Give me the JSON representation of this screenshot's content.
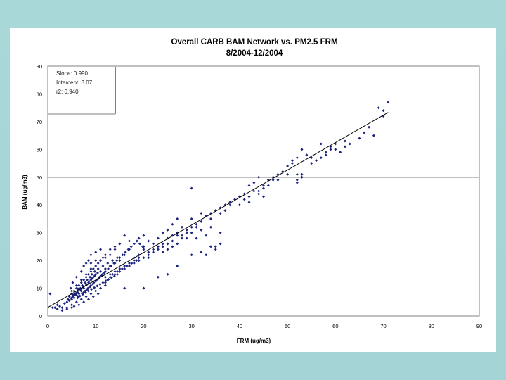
{
  "chart_data": {
    "type": "scatter",
    "title": "Overall CARB BAM Network vs. PM2.5 FRM",
    "subtitle": "8/2004-12/2004",
    "xlabel": "FRM (ug/m3)",
    "ylabel": "BAM (ug/m3)",
    "xlim": [
      0,
      90
    ],
    "ylim": [
      0,
      90
    ],
    "x_ticks": [
      "0",
      "10",
      "20",
      "30",
      "40",
      "50",
      "60",
      "70",
      "80",
      "90"
    ],
    "y_ticks": [
      "0",
      "10",
      "20",
      "30",
      "40",
      "50",
      "60",
      "70",
      "80",
      "90"
    ],
    "grid": false,
    "marker_color": "#1a237e",
    "stats": {
      "slope": "Slope: 0.990",
      "intercept": "Intercept: 3.07",
      "r2": "r2: 0.940"
    },
    "regression": {
      "slope": 0.99,
      "intercept": 3.07,
      "x_range": [
        0,
        71
      ]
    },
    "reference_line_y": 50,
    "series": [
      {
        "points": [
          [
            3.5,
            4.5
          ],
          [
            4,
            5
          ],
          [
            4.2,
            6
          ],
          [
            4.5,
            5.5
          ],
          [
            5,
            6
          ],
          [
            5.2,
            7
          ],
          [
            5.5,
            6.5
          ],
          [
            5.8,
            8
          ],
          [
            6,
            7.5
          ],
          [
            6.2,
            9
          ],
          [
            6.5,
            8
          ],
          [
            6.8,
            10
          ],
          [
            7,
            9
          ],
          [
            7.2,
            11
          ],
          [
            7.5,
            10
          ],
          [
            7.8,
            12
          ],
          [
            8,
            11
          ],
          [
            8.2,
            13
          ],
          [
            8.5,
            12
          ],
          [
            8.8,
            14
          ],
          [
            9,
            13
          ],
          [
            9.2,
            15
          ],
          [
            9.5,
            14
          ],
          [
            9.8,
            16
          ],
          [
            10,
            15
          ],
          [
            10.5,
            17
          ],
          [
            11,
            16
          ],
          [
            11.5,
            18
          ],
          [
            12,
            17
          ],
          [
            12.5,
            19
          ],
          [
            13,
            18
          ],
          [
            13.5,
            20
          ],
          [
            14,
            19
          ],
          [
            14.5,
            21
          ],
          [
            15,
            20
          ],
          [
            5,
            9
          ],
          [
            6,
            11
          ],
          [
            7,
            13
          ],
          [
            8,
            15
          ],
          [
            9,
            17
          ],
          [
            5,
            4
          ],
          [
            6,
            5
          ],
          [
            7,
            6
          ],
          [
            8,
            7
          ],
          [
            9,
            8
          ],
          [
            10,
            9
          ],
          [
            11,
            10
          ],
          [
            12,
            11
          ],
          [
            4,
            3
          ],
          [
            5.5,
            3.5
          ],
          [
            6.5,
            4
          ],
          [
            7.5,
            5
          ],
          [
            8.5,
            6
          ],
          [
            9.5,
            7
          ],
          [
            10.5,
            8
          ],
          [
            4.8,
            10
          ],
          [
            5.2,
            12
          ],
          [
            6,
            14
          ],
          [
            7,
            16
          ],
          [
            7.5,
            18
          ],
          [
            8,
            19
          ],
          [
            8.5,
            20
          ],
          [
            9,
            22
          ],
          [
            10,
            23
          ],
          [
            11,
            24
          ],
          [
            12,
            22
          ],
          [
            13,
            24
          ],
          [
            14,
            25
          ],
          [
            16,
            22
          ],
          [
            17,
            24
          ],
          [
            18,
            20
          ],
          [
            19,
            22
          ],
          [
            20,
            25
          ],
          [
            21,
            27
          ],
          [
            22,
            26
          ],
          [
            23,
            28
          ],
          [
            24,
            30
          ],
          [
            25,
            31
          ],
          [
            26,
            27
          ],
          [
            27,
            29
          ],
          [
            18,
            26
          ],
          [
            19,
            28
          ],
          [
            20,
            29
          ],
          [
            21,
            22
          ],
          [
            22,
            24
          ],
          [
            23,
            25
          ],
          [
            24,
            23
          ],
          [
            25,
            28
          ],
          [
            26,
            33
          ],
          [
            27,
            35
          ],
          [
            28,
            32
          ],
          [
            29,
            30
          ],
          [
            30,
            35
          ],
          [
            31,
            33
          ],
          [
            32,
            34
          ],
          [
            33,
            36
          ],
          [
            34,
            35
          ],
          [
            35,
            38
          ],
          [
            36,
            37
          ],
          [
            37,
            38
          ],
          [
            30,
            30
          ],
          [
            31,
            28
          ],
          [
            32,
            31
          ],
          [
            33,
            29
          ],
          [
            34,
            32
          ],
          [
            35,
            24
          ],
          [
            35,
            25
          ],
          [
            36,
            30
          ],
          [
            37,
            40
          ],
          [
            38,
            41
          ],
          [
            39,
            42
          ],
          [
            40,
            40
          ],
          [
            41,
            42
          ],
          [
            42,
            41
          ],
          [
            43,
            45
          ],
          [
            44,
            44
          ],
          [
            45,
            46
          ],
          [
            46,
            47
          ],
          [
            47,
            49
          ],
          [
            42,
            47
          ],
          [
            43,
            48
          ],
          [
            44,
            50
          ],
          [
            45,
            43
          ],
          [
            46,
            49
          ],
          [
            48,
            51
          ],
          [
            49,
            52
          ],
          [
            50,
            54
          ],
          [
            51,
            56
          ],
          [
            52,
            57
          ],
          [
            53,
            60
          ],
          [
            51,
            55
          ],
          [
            52,
            48
          ],
          [
            53,
            50
          ],
          [
            54,
            58
          ],
          [
            55,
            57
          ],
          [
            57,
            62
          ],
          [
            58,
            58
          ],
          [
            59,
            61
          ],
          [
            60,
            60
          ],
          [
            61,
            59
          ],
          [
            65,
            64
          ],
          [
            66,
            66
          ],
          [
            67,
            68
          ],
          [
            68,
            65
          ],
          [
            69,
            75
          ],
          [
            70,
            74
          ],
          [
            71,
            77
          ],
          [
            70,
            72
          ],
          [
            62,
            63
          ],
          [
            63,
            62
          ],
          [
            3,
            3
          ],
          [
            2.5,
            3.5
          ],
          [
            2,
            4
          ],
          [
            1.5,
            3
          ],
          [
            0.5,
            8
          ],
          [
            1,
            3
          ],
          [
            2,
            2.5
          ],
          [
            3,
            2
          ],
          [
            4,
            2.5
          ],
          [
            5,
            3
          ],
          [
            12,
            14
          ],
          [
            13,
            15
          ],
          [
            14,
            16
          ],
          [
            15,
            17
          ],
          [
            16,
            18
          ],
          [
            17,
            19
          ],
          [
            18,
            21
          ],
          [
            19,
            20
          ],
          [
            20,
            21
          ],
          [
            21,
            23
          ],
          [
            22,
            23
          ],
          [
            23,
            24
          ],
          [
            24,
            26
          ],
          [
            25,
            26
          ],
          [
            26,
            29
          ],
          [
            27,
            30
          ],
          [
            28,
            29
          ],
          [
            29,
            31
          ],
          [
            30,
            32
          ],
          [
            31,
            32
          ],
          [
            15,
            26
          ],
          [
            17,
            27
          ],
          [
            16,
            29
          ],
          [
            14,
            24
          ],
          [
            13,
            22
          ],
          [
            11,
            20
          ],
          [
            10,
            20
          ],
          [
            9,
            19
          ],
          [
            12,
            21
          ],
          [
            20,
            24
          ],
          [
            21,
            21
          ],
          [
            24,
            25
          ],
          [
            25,
            24
          ],
          [
            26,
            25
          ],
          [
            27,
            26
          ],
          [
            28,
            28
          ],
          [
            29,
            28
          ],
          [
            30,
            46
          ],
          [
            32,
            37
          ],
          [
            34,
            37
          ],
          [
            36,
            39
          ],
          [
            38,
            40
          ],
          [
            40,
            43
          ],
          [
            41,
            44
          ],
          [
            42,
            43
          ],
          [
            44,
            45
          ],
          [
            45,
            47
          ],
          [
            47,
            50
          ],
          [
            48,
            49
          ],
          [
            50,
            51
          ],
          [
            52,
            49
          ],
          [
            52,
            51
          ],
          [
            53,
            51
          ],
          [
            55,
            55
          ],
          [
            56,
            56
          ],
          [
            57,
            57
          ],
          [
            58,
            59
          ],
          [
            59,
            60
          ],
          [
            60,
            62
          ],
          [
            62,
            61
          ],
          [
            16,
            10
          ],
          [
            20,
            10
          ],
          [
            23,
            14
          ],
          [
            25,
            15
          ],
          [
            27,
            18
          ],
          [
            30,
            22
          ],
          [
            32,
            23
          ],
          [
            33,
            22
          ],
          [
            34,
            25
          ],
          [
            36,
            26
          ],
          [
            7.5,
            8.5
          ],
          [
            8.2,
            9.5
          ],
          [
            8.8,
            10.5
          ],
          [
            9.4,
            11.5
          ],
          [
            10,
            12.5
          ],
          [
            10.6,
            13.5
          ],
          [
            11.2,
            14.5
          ],
          [
            11.8,
            15.5
          ],
          [
            6.2,
            8.5
          ],
          [
            6.8,
            9.5
          ],
          [
            7.4,
            10.5
          ],
          [
            8,
            11.5
          ],
          [
            8.6,
            12.5
          ],
          [
            9.2,
            13.5
          ],
          [
            9.8,
            14.5
          ],
          [
            10.4,
            15.5
          ],
          [
            5.6,
            7.5
          ],
          [
            6.4,
            7
          ],
          [
            7.2,
            8
          ],
          [
            7.8,
            9
          ],
          [
            8.4,
            10
          ],
          [
            9,
            11
          ],
          [
            9.6,
            12
          ],
          [
            10.2,
            13
          ],
          [
            10.8,
            14
          ],
          [
            11.4,
            15
          ],
          [
            12,
            16
          ],
          [
            12.6,
            17
          ],
          [
            13.2,
            18
          ],
          [
            13.8,
            19
          ],
          [
            14.4,
            20
          ],
          [
            15,
            21
          ],
          [
            15.6,
            22
          ],
          [
            16.2,
            23
          ],
          [
            16.8,
            24
          ],
          [
            17.4,
            25
          ],
          [
            18,
            26
          ],
          [
            18.6,
            27
          ],
          [
            19.2,
            26
          ],
          [
            19.8,
            25
          ],
          [
            4.5,
            7
          ],
          [
            5,
            8
          ],
          [
            5.5,
            9
          ],
          [
            6,
            10
          ],
          [
            6.5,
            11
          ],
          [
            7,
            12
          ],
          [
            7.5,
            13
          ],
          [
            8,
            14
          ],
          [
            8.5,
            15
          ],
          [
            9,
            16
          ],
          [
            9.5,
            17
          ],
          [
            10,
            18
          ],
          [
            10.5,
            19
          ],
          [
            11,
            20
          ],
          [
            11.5,
            21
          ],
          [
            12,
            12
          ],
          [
            12.5,
            13
          ],
          [
            13,
            14
          ],
          [
            13.5,
            15
          ],
          [
            14,
            15
          ],
          [
            14.5,
            16
          ],
          [
            15,
            16
          ],
          [
            15.5,
            17
          ],
          [
            16,
            17
          ],
          [
            16.5,
            18
          ],
          [
            17,
            18
          ],
          [
            17.5,
            19
          ],
          [
            18,
            19
          ],
          [
            18.5,
            20
          ],
          [
            19,
            21
          ],
          [
            6.2,
            6.5
          ],
          [
            6.7,
            7.2
          ],
          [
            7.3,
            7.8
          ],
          [
            7.9,
            8.4
          ],
          [
            8.5,
            9
          ],
          [
            9.1,
            9.6
          ],
          [
            9.7,
            10.2
          ],
          [
            10.3,
            10.8
          ],
          [
            10.9,
            11.4
          ],
          [
            11.5,
            12
          ],
          [
            12.1,
            12.6
          ],
          [
            12.7,
            13.2
          ],
          [
            13.3,
            13.8
          ],
          [
            13.9,
            14.4
          ],
          [
            14.5,
            15
          ],
          [
            4.3,
            5.8
          ],
          [
            4.9,
            6.4
          ],
          [
            5.3,
            7.6
          ],
          [
            5.9,
            8.2
          ],
          [
            6.3,
            9.8
          ]
        ]
      }
    ]
  }
}
